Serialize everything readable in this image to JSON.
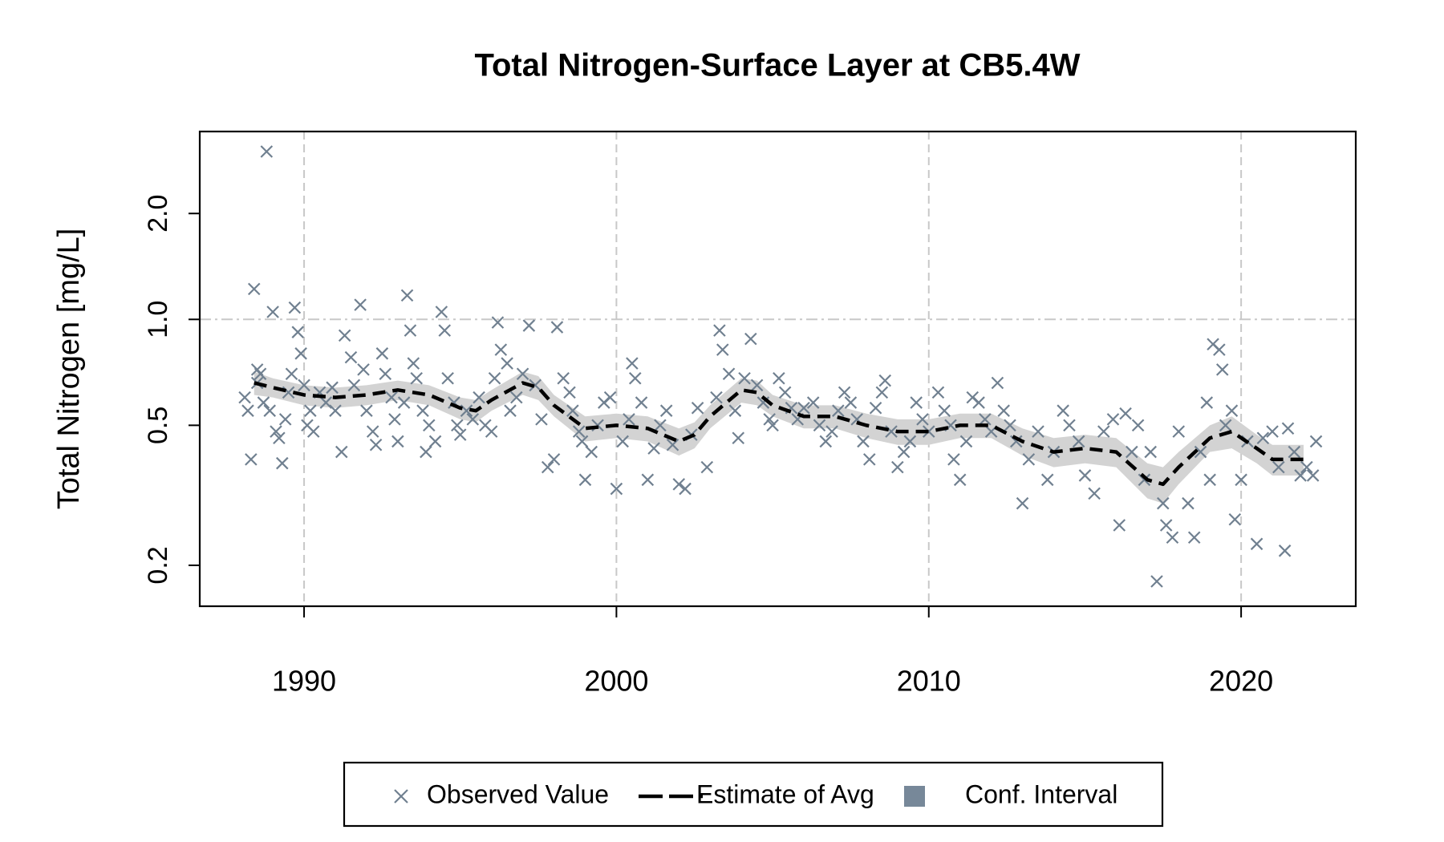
{
  "chart_data": {
    "type": "scatter",
    "title": "Total Nitrogen-Surface Layer at CB5.4W",
    "y_label": "Total Nitrogen [mg/L]",
    "y_log": true,
    "xlim": [
      1986.66,
      2023.67
    ],
    "ylim": [
      0.153,
      3.42
    ],
    "xticks": [
      1990,
      2000,
      2010,
      2020
    ],
    "yticks": [
      {
        "value": 0.2,
        "label": "0.2"
      },
      0.5,
      {
        "value": 1,
        "label": "1.0"
      },
      {
        "value": 2,
        "label": "2.0"
      }
    ],
    "xgrid": true,
    "hlines": [
      1
    ],
    "legend": "bottom",
    "series": [
      {
        "name": "Observed Value",
        "kind": "points",
        "color": "#708090",
        "x": [
          1988.1,
          1988.2,
          1988.3,
          1988.4,
          1988.5,
          1988.5,
          1988.6,
          1988.7,
          1988.8,
          1988.9,
          1989.0,
          1989.1,
          1989.2,
          1989.3,
          1989.4,
          1989.5,
          1989.6,
          1989.7,
          1989.8,
          1989.9,
          1990.0,
          1990.1,
          1990.2,
          1990.3,
          1990.5,
          1990.7,
          1990.9,
          1991.0,
          1991.2,
          1991.3,
          1991.5,
          1991.6,
          1991.8,
          1991.9,
          1992.0,
          1992.2,
          1992.3,
          1992.5,
          1992.6,
          1992.8,
          1992.9,
          1993.0,
          1993.2,
          1993.3,
          1993.4,
          1993.5,
          1993.6,
          1993.8,
          1993.9,
          1994.0,
          1994.2,
          1994.4,
          1994.5,
          1994.6,
          1994.8,
          1994.9,
          1995.0,
          1995.2,
          1995.4,
          1995.6,
          1995.8,
          1996.0,
          1996.1,
          1996.2,
          1996.3,
          1996.5,
          1996.6,
          1996.8,
          1997.0,
          1997.2,
          1997.4,
          1997.6,
          1997.8,
          1998.0,
          1998.1,
          1998.3,
          1998.5,
          1998.6,
          1998.8,
          1998.9,
          1999.0,
          1999.2,
          1999.4,
          1999.6,
          1999.8,
          2000.0,
          2000.2,
          2000.4,
          2000.5,
          2000.6,
          2000.8,
          2001.0,
          2001.2,
          2001.4,
          2001.6,
          2001.8,
          2002.0,
          2002.2,
          2002.4,
          2002.6,
          2002.9,
          2003.2,
          2003.3,
          2003.4,
          2003.6,
          2003.8,
          2003.9,
          2004.1,
          2004.3,
          2004.5,
          2004.7,
          2004.9,
          2005.0,
          2005.2,
          2005.4,
          2005.6,
          2005.8,
          2006.0,
          2006.3,
          2006.5,
          2006.7,
          2006.9,
          2007.1,
          2007.3,
          2007.5,
          2007.7,
          2007.9,
          2008.1,
          2008.3,
          2008.5,
          2008.6,
          2008.8,
          2009.0,
          2009.2,
          2009.4,
          2009.6,
          2009.8,
          2010.0,
          2010.3,
          2010.5,
          2010.7,
          2010.8,
          2011.0,
          2011.2,
          2011.4,
          2011.6,
          2011.8,
          2012.0,
          2012.2,
          2012.4,
          2012.6,
          2012.8,
          2013.0,
          2013.2,
          2013.5,
          2013.8,
          2014.0,
          2014.3,
          2014.5,
          2014.8,
          2015.0,
          2015.3,
          2015.6,
          2015.9,
          2016.1,
          2016.3,
          2016.5,
          2016.7,
          2016.9,
          2017.1,
          2017.3,
          2017.5,
          2017.6,
          2017.8,
          2018.0,
          2018.3,
          2018.5,
          2018.7,
          2018.9,
          2019.0,
          2019.1,
          2019.3,
          2019.4,
          2019.5,
          2019.7,
          2019.8,
          2020.0,
          2020.2,
          2020.5,
          2020.7,
          2021.0,
          2021.2,
          2021.4,
          2021.5,
          2021.7,
          2021.9,
          2022.1,
          2022.3,
          2022.4
        ],
        "values": [
          0.6,
          0.55,
          0.4,
          1.22,
          0.72,
          0.66,
          0.7,
          0.58,
          3.0,
          0.55,
          1.05,
          0.48,
          0.46,
          0.39,
          0.52,
          0.62,
          0.7,
          1.08,
          0.92,
          0.8,
          0.65,
          0.5,
          0.55,
          0.48,
          0.62,
          0.58,
          0.64,
          0.55,
          0.42,
          0.9,
          0.78,
          0.65,
          1.1,
          0.72,
          0.55,
          0.48,
          0.44,
          0.8,
          0.7,
          0.6,
          0.52,
          0.45,
          0.58,
          1.17,
          0.93,
          0.75,
          0.68,
          0.55,
          0.42,
          0.5,
          0.45,
          1.05,
          0.93,
          0.68,
          0.58,
          0.5,
          0.47,
          0.55,
          0.52,
          0.6,
          0.5,
          0.48,
          0.68,
          0.98,
          0.82,
          0.75,
          0.55,
          0.6,
          0.7,
          0.96,
          0.65,
          0.52,
          0.38,
          0.4,
          0.95,
          0.68,
          0.62,
          0.55,
          0.48,
          0.45,
          0.35,
          0.42,
          0.5,
          0.58,
          0.6,
          0.33,
          0.45,
          0.52,
          0.75,
          0.68,
          0.58,
          0.35,
          0.43,
          0.5,
          0.55,
          0.44,
          0.34,
          0.33,
          0.47,
          0.56,
          0.38,
          0.6,
          0.93,
          0.82,
          0.7,
          0.55,
          0.46,
          0.68,
          0.88,
          0.65,
          0.58,
          0.52,
          0.5,
          0.68,
          0.62,
          0.56,
          0.52,
          0.56,
          0.58,
          0.5,
          0.45,
          0.48,
          0.55,
          0.62,
          0.58,
          0.52,
          0.45,
          0.4,
          0.56,
          0.62,
          0.67,
          0.48,
          0.38,
          0.42,
          0.45,
          0.58,
          0.52,
          0.48,
          0.62,
          0.55,
          0.5,
          0.4,
          0.35,
          0.45,
          0.6,
          0.58,
          0.52,
          0.48,
          0.66,
          0.55,
          0.5,
          0.45,
          0.3,
          0.4,
          0.48,
          0.35,
          0.42,
          0.55,
          0.5,
          0.45,
          0.36,
          0.32,
          0.48,
          0.52,
          0.26,
          0.54,
          0.42,
          0.5,
          0.35,
          0.42,
          0.18,
          0.3,
          0.26,
          0.24,
          0.48,
          0.3,
          0.24,
          0.42,
          0.58,
          0.35,
          0.85,
          0.82,
          0.72,
          0.5,
          0.55,
          0.27,
          0.35,
          0.45,
          0.23,
          0.46,
          0.48,
          0.38,
          0.22,
          0.49,
          0.42,
          0.36,
          0.38,
          0.36,
          0.45
        ]
      },
      {
        "name": "Estimate of Avg",
        "kind": "line",
        "color": "#000000",
        "x": [
          1988.4,
          1989,
          1990,
          1991,
          1992,
          1993,
          1994,
          1995,
          1995.5,
          1996,
          1997,
          1997.5,
          1998,
          1999,
          2000,
          2001,
          2002,
          2002.5,
          2003,
          2004,
          2004.5,
          2005,
          2006,
          2007,
          2008,
          2009,
          2010,
          2011,
          2012,
          2013,
          2014,
          2015,
          2016,
          2017,
          2017.5,
          2018,
          2019,
          2019.7,
          2020.5,
          2021,
          2022
        ],
        "values": [
          0.66,
          0.64,
          0.61,
          0.6,
          0.61,
          0.63,
          0.61,
          0.56,
          0.55,
          0.59,
          0.66,
          0.64,
          0.57,
          0.49,
          0.5,
          0.49,
          0.45,
          0.47,
          0.53,
          0.63,
          0.62,
          0.57,
          0.53,
          0.53,
          0.5,
          0.48,
          0.48,
          0.5,
          0.5,
          0.45,
          0.42,
          0.43,
          0.42,
          0.35,
          0.34,
          0.38,
          0.46,
          0.48,
          0.43,
          0.4,
          0.4
        ]
      },
      {
        "name": "Conf. Interval",
        "kind": "band",
        "color": "#d3d3d3",
        "legend_color": "#778899",
        "x": [
          1988.4,
          1989,
          1990,
          1991,
          1992,
          1993,
          1994,
          1995,
          1995.5,
          1996,
          1997,
          1997.5,
          1998,
          1999,
          2000,
          2001,
          2002,
          2002.5,
          2003,
          2004,
          2004.5,
          2005,
          2006,
          2007,
          2008,
          2009,
          2010,
          2011,
          2012,
          2013,
          2014,
          2015,
          2016,
          2017,
          2017.5,
          2018,
          2019,
          2019.7,
          2020.5,
          2021,
          2022
        ],
        "upper": [
          0.71,
          0.68,
          0.65,
          0.64,
          0.65,
          0.67,
          0.65,
          0.6,
          0.59,
          0.63,
          0.71,
          0.69,
          0.61,
          0.53,
          0.54,
          0.53,
          0.49,
          0.51,
          0.57,
          0.68,
          0.67,
          0.61,
          0.57,
          0.57,
          0.54,
          0.52,
          0.52,
          0.54,
          0.54,
          0.49,
          0.46,
          0.47,
          0.46,
          0.39,
          0.38,
          0.42,
          0.5,
          0.53,
          0.47,
          0.44,
          0.44
        ],
        "lower": [
          0.61,
          0.6,
          0.57,
          0.56,
          0.57,
          0.59,
          0.57,
          0.52,
          0.51,
          0.55,
          0.61,
          0.59,
          0.53,
          0.45,
          0.46,
          0.45,
          0.41,
          0.43,
          0.49,
          0.58,
          0.57,
          0.53,
          0.49,
          0.49,
          0.46,
          0.44,
          0.44,
          0.46,
          0.46,
          0.41,
          0.38,
          0.39,
          0.38,
          0.31,
          0.3,
          0.34,
          0.42,
          0.43,
          0.39,
          0.36,
          0.36
        ]
      }
    ]
  }
}
